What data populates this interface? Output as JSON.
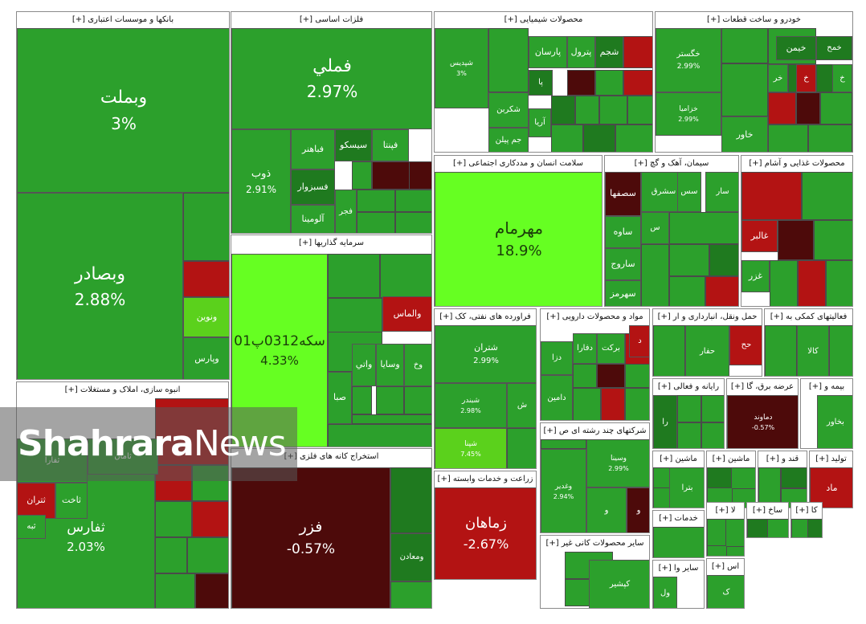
{
  "colors": {
    "dark_green": "#1f7a1f",
    "green": "#2ca02c",
    "mid_green": "#3fb22c",
    "bright_green": "#5bd11c",
    "neon_green": "#66ff22",
    "dark_red": "#4d0a0a",
    "red": "#b31313",
    "deep_red": "#7a0d0d"
  },
  "watermark": {
    "bold_part": "Shahrara",
    "light_part": "News"
  },
  "chart_data": {
    "type": "treemap",
    "sectors": [
      {
        "name": "بانکها و موسسات اعتباری [+]",
        "tiles": [
          {
            "symbol": "وبملت",
            "value": "3%"
          },
          {
            "symbol": "وبصادر",
            "value": "2.88%"
          },
          {
            "symbol": "ونوین",
            "value": ""
          },
          {
            "symbol": "وپارس",
            "value": ""
          }
        ]
      },
      {
        "name": "فلزات اساسی [+]",
        "tiles": [
          {
            "symbol": "فملي",
            "value": "2.97%"
          },
          {
            "symbol": "ذوب",
            "value": "2.91%"
          },
          {
            "symbol": "فباهنر",
            "value": ""
          },
          {
            "symbol": "فسبزوار",
            "value": ""
          },
          {
            "symbol": "آلومينا",
            "value": ""
          },
          {
            "symbol": "سیسکو",
            "value": ""
          },
          {
            "symbol": "فپنتا",
            "value": ""
          },
          {
            "symbol": "فجر",
            "value": ""
          }
        ]
      },
      {
        "name": "محصولات شیمیایی [+]",
        "tiles": [
          {
            "symbol": "شپدیس",
            "value": "3%"
          },
          {
            "symbol": "پارسان",
            "value": ""
          },
          {
            "symbol": "پترول",
            "value": ""
          },
          {
            "symbol": "شجم",
            "value": ""
          },
          {
            "symbol": "شکربن",
            "value": ""
          },
          {
            "symbol": "آریا",
            "value": ""
          },
          {
            "symbol": "جم پیلن",
            "value": ""
          },
          {
            "symbol": "پا",
            "value": ""
          }
        ]
      },
      {
        "name": "خودرو و ساخت قطعات [+]",
        "tiles": [
          {
            "symbol": "خگستر",
            "value": "2.99%"
          },
          {
            "symbol": "خزامیا",
            "value": "2.99%"
          },
          {
            "symbol": "خیمن",
            "value": ""
          },
          {
            "symbol": "خمح",
            "value": ""
          },
          {
            "symbol": "خاور",
            "value": ""
          },
          {
            "symbol": "خر",
            "value": ""
          },
          {
            "symbol": "خ",
            "value": ""
          },
          {
            "symbol": "خ",
            "value": ""
          }
        ]
      },
      {
        "name": "سرمایه گذاریها [+]",
        "tiles": [
          {
            "symbol": "سکه0312پ01",
            "value": "4.33%"
          },
          {
            "symbol": "والماس",
            "value": ""
          },
          {
            "symbol": "واتي",
            "value": ""
          },
          {
            "symbol": "وسایا",
            "value": ""
          },
          {
            "symbol": "وخ",
            "value": ""
          },
          {
            "symbol": "صبا",
            "value": ""
          }
        ]
      },
      {
        "name": "سلامت انسان و مددکاری اجتماعی [+]",
        "tiles": [
          {
            "symbol": "مهرمام",
            "value": "18.9%"
          }
        ]
      },
      {
        "name": "سیمان، آهک و گچ [+]",
        "tiles": [
          {
            "symbol": "سصفها",
            "value": ""
          },
          {
            "symbol": "سشرق",
            "value": ""
          },
          {
            "symbol": "سس",
            "value": ""
          },
          {
            "symbol": "سار",
            "value": ""
          },
          {
            "symbol": "ساوه",
            "value": ""
          },
          {
            "symbol": "ساروج",
            "value": ""
          },
          {
            "symbol": "سهرمز",
            "value": ""
          },
          {
            "symbol": "س",
            "value": ""
          }
        ]
      },
      {
        "name": "محصولات غذایی و آشام [+]",
        "tiles": [
          {
            "symbol": "غالبر",
            "value": ""
          },
          {
            "symbol": "غزر",
            "value": ""
          }
        ]
      },
      {
        "name": "انبوه سازی، املاک و مستغلات [+]",
        "tiles": [
          {
            "symbol": "ثفارس",
            "value": "2.03%"
          },
          {
            "symbol": "ثتران",
            "value": ""
          },
          {
            "symbol": "ثاخت",
            "value": ""
          },
          {
            "symbol": "ثرود",
            "value": ""
          },
          {
            "symbol": "ثبه",
            "value": ""
          },
          {
            "symbol": "ثامان",
            "value": ""
          },
          {
            "symbol": "ثفارا",
            "value": ""
          }
        ]
      },
      {
        "name": "استخراج کانه های فلزی [+]",
        "tiles": [
          {
            "symbol": "فزر",
            "value": "-0.57%"
          },
          {
            "symbol": "ومعادن",
            "value": ""
          }
        ]
      },
      {
        "name": "فراورده های نفتی، کک [+]",
        "tiles": [
          {
            "symbol": "شتران",
            "value": "2.99%"
          },
          {
            "symbol": "شبندر",
            "value": "2.98%"
          },
          {
            "symbol": "شپنا",
            "value": "7.45%"
          },
          {
            "symbol": "ش",
            "value": ""
          }
        ]
      },
      {
        "name": "مواد و محصولات دارویی [+]",
        "tiles": [
          {
            "symbol": "دفارا",
            "value": ""
          },
          {
            "symbol": "برکت",
            "value": ""
          },
          {
            "symbol": "دزا",
            "value": ""
          },
          {
            "symbol": "دامین",
            "value": ""
          },
          {
            "symbol": "د",
            "value": ""
          }
        ]
      },
      {
        "name": "حمل ونقل، انبارداری و ار [+]",
        "tiles": [
          {
            "symbol": "حفار",
            "value": ""
          },
          {
            "symbol": "حح",
            "value": ""
          }
        ]
      },
      {
        "name": "فعالیتهای کمکی به [+]",
        "tiles": [
          {
            "symbol": "کالا",
            "value": ""
          }
        ]
      },
      {
        "name": "شرکتهای چند رشته ای ص [+]",
        "tiles": [
          {
            "symbol": "وغدیر",
            "value": "2.94%"
          },
          {
            "symbol": "وسینا",
            "value": "2.99%"
          },
          {
            "symbol": "و",
            "value": ""
          },
          {
            "symbol": "و",
            "value": ""
          }
        ]
      },
      {
        "name": "زراعت و خدمات وابسته [+]",
        "tiles": [
          {
            "symbol": "زماهان",
            "value": "-2.67%"
          }
        ]
      },
      {
        "name": "سایر محصولات کانی غیر [+]",
        "tiles": [
          {
            "symbol": "کپشیر",
            "value": ""
          }
        ]
      },
      {
        "name": "رایانه و فعالی [+]",
        "tiles": [
          {
            "symbol": "را",
            "value": ""
          }
        ]
      },
      {
        "name": "عرضه برق، گا [+]",
        "tiles": [
          {
            "symbol": "دماوند",
            "value": "-0.57%"
          }
        ]
      },
      {
        "name": "بیمه و [+]",
        "tiles": [
          {
            "symbol": "بخاور",
            "value": ""
          }
        ]
      },
      {
        "name": "ماشین [+]",
        "tiles": [
          {
            "symbol": "بترا",
            "value": ""
          }
        ]
      },
      {
        "name": "ماشین [+]",
        "tiles": []
      },
      {
        "name": "قند و [+]",
        "tiles": []
      },
      {
        "name": "تولید [+]",
        "tiles": [
          {
            "symbol": "ماد",
            "value": ""
          }
        ]
      },
      {
        "name": "خدمات [+]",
        "tiles": []
      },
      {
        "name": "سایر وا [+]",
        "tiles": [
          {
            "symbol": "ول",
            "value": ""
          }
        ]
      },
      {
        "name": "اس [+]",
        "tiles": [
          {
            "symbol": "ک",
            "value": ""
          }
        ]
      },
      {
        "name": "لا [+]",
        "tiles": []
      },
      {
        "name": "ساخ [+]",
        "tiles": []
      },
      {
        "name": "کا [+]",
        "tiles": []
      }
    ]
  }
}
